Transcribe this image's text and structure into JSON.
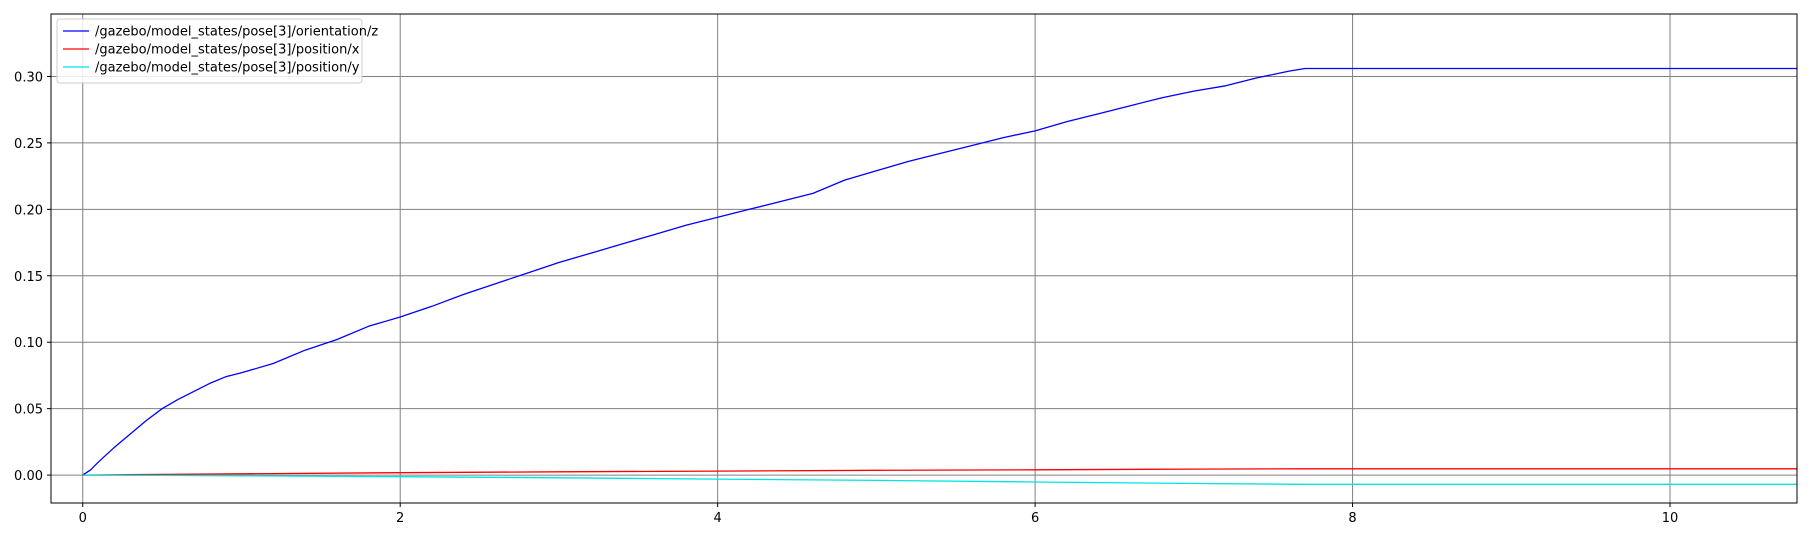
{
  "chart_data": {
    "type": "line",
    "title": "",
    "xlabel": "",
    "ylabel": "",
    "xlim": [
      -0.2,
      10.8
    ],
    "ylim": [
      -0.021,
      0.347
    ],
    "xticks": [
      0,
      2,
      4,
      6,
      8,
      10
    ],
    "yticks": [
      0.0,
      0.05,
      0.1,
      0.15,
      0.2,
      0.25,
      0.3
    ],
    "xtick_labels": [
      "0",
      "2",
      "4",
      "6",
      "8",
      "10"
    ],
    "ytick_labels": [
      "0.00",
      "0.05",
      "0.10",
      "0.15",
      "0.20",
      "0.25",
      "0.30"
    ],
    "grid": true,
    "legend_position": "top-left",
    "series": [
      {
        "name": "/gazebo/model_states/pose[3]/orientation/z",
        "color": "#0000ff",
        "x": [
          0,
          0.05,
          0.1,
          0.2,
          0.3,
          0.4,
          0.5,
          0.6,
          0.7,
          0.8,
          0.9,
          1.0,
          1.2,
          1.4,
          1.6,
          1.8,
          2.0,
          2.2,
          2.4,
          2.6,
          2.8,
          3.0,
          3.2,
          3.4,
          3.6,
          3.8,
          4.0,
          4.2,
          4.4,
          4.6,
          4.8,
          5.0,
          5.2,
          5.4,
          5.6,
          5.8,
          6.0,
          6.2,
          6.4,
          6.6,
          6.8,
          7.0,
          7.2,
          7.4,
          7.6,
          7.7,
          8.0,
          9.0,
          10.0,
          10.8
        ],
        "y": [
          0.0,
          0.004,
          0.01,
          0.021,
          0.031,
          0.041,
          0.05,
          0.057,
          0.063,
          0.069,
          0.074,
          0.077,
          0.084,
          0.094,
          0.102,
          0.112,
          0.119,
          0.127,
          0.136,
          0.144,
          0.152,
          0.16,
          0.167,
          0.174,
          0.181,
          0.188,
          0.194,
          0.2,
          0.206,
          0.212,
          0.222,
          0.229,
          0.236,
          0.242,
          0.248,
          0.254,
          0.259,
          0.266,
          0.272,
          0.278,
          0.284,
          0.289,
          0.293,
          0.299,
          0.304,
          0.306,
          0.306,
          0.306,
          0.306,
          0.306
        ]
      },
      {
        "name": "/gazebo/model_states/pose[3]/position/x",
        "color": "#ff0000",
        "x": [
          0,
          0.5,
          1.0,
          2.0,
          3.0,
          4.0,
          5.0,
          6.0,
          7.0,
          7.7,
          8.0,
          9.0,
          10.0,
          10.8
        ],
        "y": [
          0.0,
          0.0005,
          0.001,
          0.0018,
          0.0025,
          0.003,
          0.0036,
          0.004,
          0.0045,
          0.0047,
          0.0047,
          0.0047,
          0.0047,
          0.0047
        ]
      },
      {
        "name": "/gazebo/model_states/pose[3]/position/y",
        "color": "#00e5e5",
        "x": [
          0,
          0.5,
          1.0,
          2.0,
          3.0,
          4.0,
          5.0,
          6.0,
          7.0,
          7.7,
          8.0,
          9.0,
          10.0,
          10.8
        ],
        "y": [
          0.0,
          -0.0002,
          -0.0005,
          -0.0012,
          -0.002,
          -0.003,
          -0.004,
          -0.0052,
          -0.0063,
          -0.0069,
          -0.0069,
          -0.0069,
          -0.0069,
          -0.0069
        ]
      }
    ]
  }
}
